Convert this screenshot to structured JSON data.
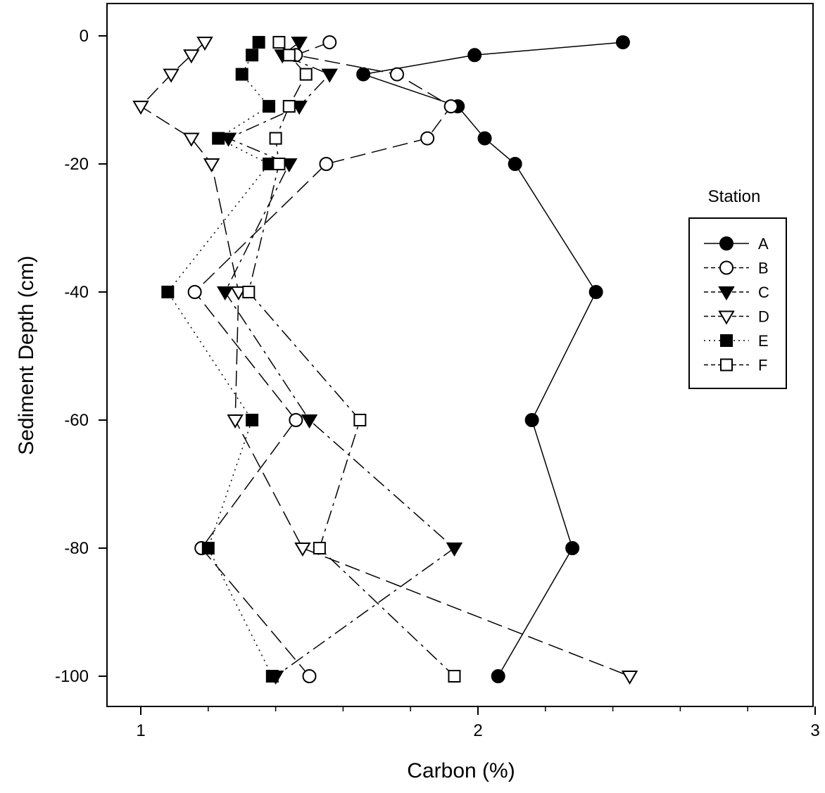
{
  "chart_data": {
    "type": "line",
    "xlabel": "Carbon (%)",
    "ylabel": "Sediment Depth (cm)",
    "xlim": [
      0.9,
      3.0
    ],
    "ylim": [
      -105,
      5
    ],
    "x_major_ticks": [
      1,
      2,
      3
    ],
    "x_tick_labels": [
      "1",
      "2",
      "3"
    ],
    "x_minor_ticks": [
      1.2,
      1.4,
      1.6,
      1.8,
      2.2,
      2.4,
      2.6,
      2.8
    ],
    "y_ticks": [
      0,
      -20,
      -40,
      -60,
      -80,
      -100
    ],
    "y_tick_labels": [
      "0",
      "-20",
      "-40",
      "-60",
      "-80",
      "-100"
    ],
    "grid": false,
    "legend": {
      "title": "Station",
      "position": "right"
    },
    "series": [
      {
        "name": "A",
        "marker": "circle-filled",
        "dash": "solid",
        "x": [
          2.43,
          1.99,
          1.66,
          1.94,
          2.02,
          2.11,
          2.35,
          2.16,
          2.28,
          2.06
        ],
        "y": [
          -1,
          -3,
          -6,
          -11,
          -16,
          -20,
          -40,
          -60,
          -80,
          -100
        ]
      },
      {
        "name": "B",
        "marker": "circle-open",
        "dash": "longdash",
        "x": [
          1.56,
          1.46,
          1.76,
          1.92,
          1.85,
          1.55,
          1.16,
          1.46,
          1.18,
          1.5
        ],
        "y": [
          -1,
          -3,
          -6,
          -11,
          -16,
          -20,
          -40,
          -60,
          -80,
          -100
        ]
      },
      {
        "name": "C",
        "marker": "triangle-down-filled",
        "dash": "dashdot",
        "x": [
          1.47,
          1.42,
          1.56,
          1.47,
          1.26,
          1.44,
          1.25,
          1.5,
          1.93,
          1.4
        ],
        "y": [
          -1,
          -3,
          -6,
          -11,
          -16,
          -20,
          -40,
          -60,
          -80,
          -100
        ]
      },
      {
        "name": "D",
        "marker": "triangle-down-open",
        "dash": "longdash",
        "x": [
          1.19,
          1.15,
          1.09,
          1.0,
          1.15,
          1.21,
          1.29,
          1.28,
          1.48,
          2.45
        ],
        "y": [
          -1,
          -3,
          -6,
          -11,
          -16,
          -20,
          -40,
          -60,
          -80,
          -100
        ]
      },
      {
        "name": "E",
        "marker": "square-filled",
        "dash": "dotted",
        "x": [
          1.35,
          1.33,
          1.3,
          1.38,
          1.23,
          1.38,
          1.08,
          1.33,
          1.2,
          1.39
        ],
        "y": [
          -1,
          -3,
          -6,
          -11,
          -16,
          -20,
          -40,
          -60,
          -80,
          -100
        ]
      },
      {
        "name": "F",
        "marker": "square-open",
        "dash": "dashdot",
        "x": [
          1.41,
          1.44,
          1.49,
          1.44,
          1.4,
          1.41,
          1.32,
          1.65,
          1.53,
          1.93
        ],
        "y": [
          -1,
          -3,
          -6,
          -11,
          -16,
          -20,
          -40,
          -60,
          -80,
          -100
        ]
      }
    ]
  }
}
